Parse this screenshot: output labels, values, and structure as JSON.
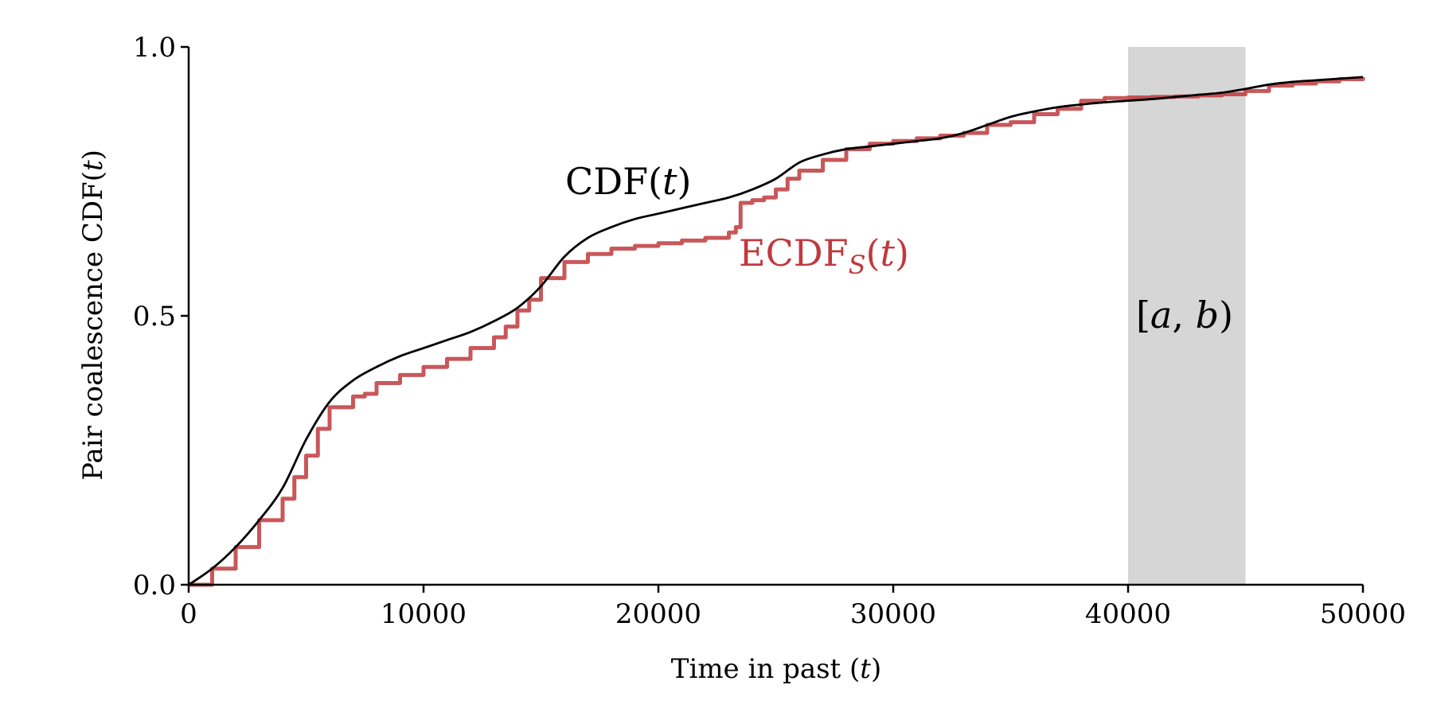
{
  "chart_data": {
    "type": "line",
    "xlabel": "Time in past",
    "xlabel_var": "t",
    "ylabel": "Pair coalescence CDF",
    "ylabel_var": "t",
    "xlim": [
      0,
      50000
    ],
    "ylim": [
      0,
      1
    ],
    "x_ticks": [
      0,
      10000,
      20000,
      30000,
      40000,
      50000
    ],
    "x_tick_labels": [
      "0",
      "10000",
      "20000",
      "30000",
      "40000",
      "50000"
    ],
    "y_ticks": [
      0,
      0.5,
      1
    ],
    "y_tick_labels": [
      "0.0",
      "0.5",
      "1.0"
    ],
    "grid": false,
    "shaded_interval": {
      "x0": 40000,
      "x1": 45000,
      "color": "#d6d6d6",
      "label": "[a, b)",
      "label_a": "a",
      "label_b": "b"
    },
    "colors": {
      "cdf": "#000000",
      "ecdf": "#c0393d"
    },
    "series": [
      {
        "name": "CDF(t)",
        "label_main": "CDF",
        "label_var": "t",
        "color": "#000000",
        "x": [
          0,
          1000,
          2000,
          3000,
          4000,
          5000,
          6000,
          7000,
          8000,
          9000,
          10000,
          11000,
          12000,
          13000,
          14000,
          15000,
          16000,
          17000,
          18000,
          19000,
          20000,
          21000,
          22000,
          23000,
          24000,
          25000,
          26000,
          27000,
          28000,
          29000,
          30000,
          31000,
          32000,
          33000,
          34000,
          35000,
          36000,
          37000,
          38000,
          39000,
          40000,
          41000,
          42000,
          43000,
          44000,
          45000,
          46000,
          47000,
          48000,
          49000,
          50000
        ],
        "y": [
          0,
          0.03,
          0.07,
          0.12,
          0.18,
          0.27,
          0.34,
          0.38,
          0.405,
          0.425,
          0.44,
          0.455,
          0.47,
          0.49,
          0.515,
          0.555,
          0.61,
          0.645,
          0.665,
          0.68,
          0.69,
          0.7,
          0.71,
          0.72,
          0.735,
          0.755,
          0.785,
          0.8,
          0.81,
          0.815,
          0.82,
          0.825,
          0.83,
          0.84,
          0.855,
          0.87,
          0.88,
          0.888,
          0.893,
          0.897,
          0.9,
          0.903,
          0.907,
          0.911,
          0.915,
          0.922,
          0.93,
          0.935,
          0.938,
          0.941,
          0.944
        ]
      },
      {
        "name": "ECDF_S(t)",
        "label_main": "ECDF",
        "label_sub": "S",
        "label_var": "t",
        "color": "#c0393d",
        "x": [
          0,
          1000,
          2000,
          3000,
          4000,
          4500,
          5000,
          5500,
          6000,
          7000,
          7500,
          8000,
          9000,
          10000,
          11000,
          12000,
          13000,
          13500,
          14000,
          14500,
          15000,
          16000,
          17000,
          18000,
          19000,
          20000,
          21000,
          22000,
          23000,
          23300,
          23500,
          24000,
          24500,
          25000,
          25500,
          26000,
          27000,
          28000,
          29000,
          30000,
          31000,
          32000,
          33000,
          34000,
          35000,
          36000,
          37000,
          38000,
          39000,
          40000,
          41000,
          42000,
          43000,
          44000,
          45000,
          46000,
          47000,
          48000,
          49000,
          50000
        ],
        "y": [
          0,
          0.03,
          0.07,
          0.12,
          0.16,
          0.2,
          0.24,
          0.29,
          0.33,
          0.35,
          0.355,
          0.375,
          0.39,
          0.405,
          0.42,
          0.44,
          0.46,
          0.48,
          0.51,
          0.53,
          0.57,
          0.6,
          0.615,
          0.625,
          0.63,
          0.635,
          0.64,
          0.645,
          0.655,
          0.665,
          0.71,
          0.715,
          0.72,
          0.735,
          0.755,
          0.77,
          0.79,
          0.81,
          0.82,
          0.825,
          0.83,
          0.835,
          0.84,
          0.855,
          0.86,
          0.875,
          0.885,
          0.9,
          0.905,
          0.906,
          0.907,
          0.908,
          0.91,
          0.912,
          0.918,
          0.928,
          0.932,
          0.936,
          0.94,
          0.944
        ]
      }
    ]
  }
}
